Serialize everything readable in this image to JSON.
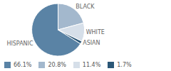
{
  "chart_data": {
    "type": "pie",
    "categories": [
      "HISPANIC",
      "BLACK",
      "WHITE",
      "ASIAN"
    ],
    "values": [
      66.1,
      20.8,
      11.4,
      1.7
    ],
    "value_labels": [
      "66.1%",
      "20.8%",
      "11.4%",
      "1.7%"
    ],
    "colors": [
      "#5a83a5",
      "#a3b8cd",
      "#d6dfe9",
      "#2b5777"
    ]
  }
}
